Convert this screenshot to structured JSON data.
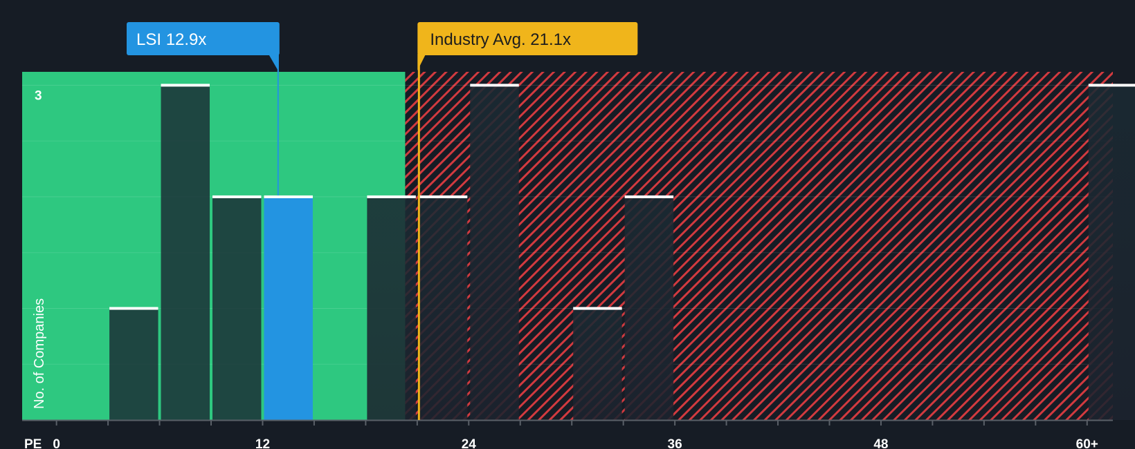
{
  "chart_data": {
    "type": "bar",
    "xlabel": "PE",
    "ylabel": "No. of Companies",
    "x_ticks": [
      "0",
      "12",
      "24",
      "36",
      "48",
      "60+"
    ],
    "x_tick_values": [
      0,
      12,
      24,
      36,
      48,
      60
    ],
    "xlim": [
      -2,
      61.5
    ],
    "ylim": [
      0,
      3.12
    ],
    "y_tick_labels": [
      {
        "value": 3,
        "label": "3"
      }
    ],
    "grid": true,
    "bin_width": 3,
    "bins": [
      {
        "start": 3,
        "count": 1
      },
      {
        "start": 6,
        "count": 3
      },
      {
        "start": 9,
        "count": 2
      },
      {
        "start": 12,
        "count": 2,
        "highlight": true
      },
      {
        "start": 18,
        "count": 2
      },
      {
        "start": 21,
        "count": 2
      },
      {
        "start": 24,
        "count": 3
      },
      {
        "start": 30,
        "count": 1
      },
      {
        "start": 33,
        "count": 2
      },
      {
        "start": 60,
        "count": 3
      }
    ],
    "subject": {
      "label": "LSI 12.9x",
      "value": 12.9,
      "color": "#2394e1"
    },
    "industry_avg": {
      "label": "Industry Avg. 21.1x",
      "value": 21.1,
      "color": "#f0b51b"
    },
    "fair_zone_end": 20.3,
    "colors": {
      "fair_zone": "#2ec880",
      "overvalued_zone": "#e8383c",
      "background": "#161c25"
    }
  }
}
